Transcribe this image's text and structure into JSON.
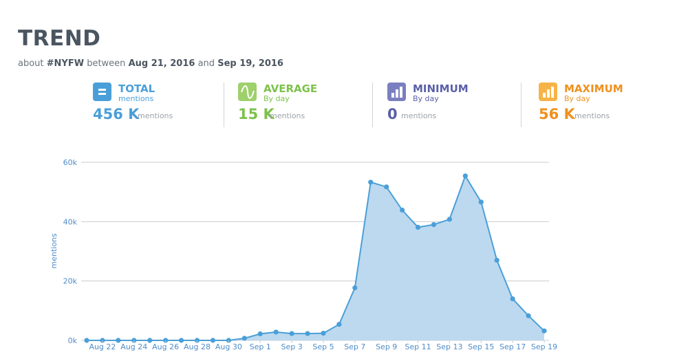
{
  "header": {
    "title": "TREND",
    "subtitle_prefix": "about",
    "hashtag": "#NYFW",
    "between": "between",
    "start_date": "Aug 21, 2016",
    "and": "and",
    "end_date": "Sep 19, 2016"
  },
  "stats": [
    {
      "title": "TOTAL",
      "sub": "mentions",
      "value": "456 K",
      "unit": "mentions",
      "color": "#4a9fd8",
      "icon": "equals-icon"
    },
    {
      "title": "AVERAGE",
      "sub": "By day",
      "value": "15 K",
      "unit": "mentions",
      "color": "#7dc24b",
      "icon": "wave-icon"
    },
    {
      "title": "MINIMUM",
      "sub": "By day",
      "value": "0",
      "unit": "mentions",
      "color": "#5a5fa8",
      "icon": "bars-min-icon"
    },
    {
      "title": "MAXIMUM",
      "sub": "By day",
      "value": "56 K",
      "unit": "mentions",
      "color": "#f0901e",
      "icon": "bars-max-icon"
    }
  ],
  "chart_data": {
    "type": "area",
    "ylabel": "mentions",
    "xlabel": "",
    "ylim": [
      0,
      60000
    ],
    "y_ticks": [
      "0k",
      "20k",
      "40k",
      "60k"
    ],
    "y_tick_values": [
      0,
      20000,
      40000,
      60000
    ],
    "x_tick_labels": [
      "Aug 22",
      "Aug 24",
      "Aug 26",
      "Aug 28",
      "Aug 30",
      "Sep 1",
      "Sep 3",
      "Sep 5",
      "Sep 7",
      "Sep 9",
      "Sep 11",
      "Sep 13",
      "Sep 15",
      "Sep 17",
      "Sep 19"
    ],
    "x": [
      "Aug 21",
      "Aug 22",
      "Aug 23",
      "Aug 24",
      "Aug 25",
      "Aug 26",
      "Aug 27",
      "Aug 28",
      "Aug 29",
      "Aug 30",
      "Aug 31",
      "Sep 1",
      "Sep 2",
      "Sep 3",
      "Sep 4",
      "Sep 5",
      "Sep 6",
      "Sep 7",
      "Sep 8",
      "Sep 9",
      "Sep 10",
      "Sep 11",
      "Sep 12",
      "Sep 13",
      "Sep 14",
      "Sep 15",
      "Sep 16",
      "Sep 17",
      "Sep 18",
      "Sep 19"
    ],
    "values": [
      0,
      0,
      0,
      0,
      0,
      0,
      0,
      0,
      0,
      0,
      700,
      2200,
      2800,
      2300,
      2300,
      2400,
      5400,
      17700,
      53300,
      51700,
      43900,
      38100,
      39000,
      40800,
      55400,
      46600,
      27000,
      14000,
      8300,
      3200
    ],
    "grid": true,
    "line_color": "#4a9fd8",
    "fill_color": "#bcd9ef"
  }
}
